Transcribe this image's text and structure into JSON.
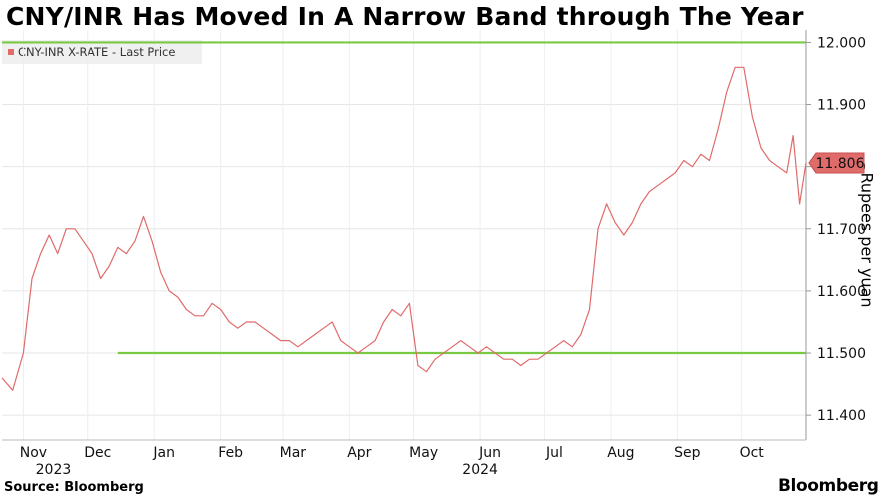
{
  "title": "CNY/INR Has Moved In A Narrow Band through The Year",
  "legend": {
    "label": "CNY-INR X-RATE - Last Price",
    "color": "#e06b6b"
  },
  "source": "Source: Bloomberg",
  "brand": "Bloomberg",
  "chart_data": {
    "type": "line",
    "title": "CNY/INR Has Moved In A Narrow Band through The Year",
    "ylabel": "Rupees per yuan",
    "xlabel": "",
    "ylim": [
      11.36,
      12.02
    ],
    "yticks": [
      "11.400",
      "11.500",
      "11.600",
      "11.700",
      "11.800",
      "11.900",
      "12.000"
    ],
    "ytick_values": [
      11.4,
      11.5,
      11.6,
      11.7,
      11.8,
      11.9,
      12.0
    ],
    "x_tick_labels": [
      "Nov",
      "Dec",
      "Jan",
      "Feb",
      "Mar",
      "Apr",
      "May",
      "Jun",
      "Jul",
      "Aug",
      "Sep",
      "Oct"
    ],
    "x_tick_dates": [
      "2023-11-01",
      "2023-12-01",
      "2024-01-01",
      "2024-02-01",
      "2024-03-01",
      "2024-04-01",
      "2024-05-01",
      "2024-06-01",
      "2024-07-01",
      "2024-08-01",
      "2024-09-01",
      "2024-10-01"
    ],
    "year_labels": [
      {
        "label": "2023",
        "date": "2023-11-15"
      },
      {
        "label": "2024",
        "date": "2024-06-01"
      }
    ],
    "x_range": [
      "2023-10-22",
      "2024-10-31"
    ],
    "last_price": {
      "label": "11.806",
      "value": 11.806
    },
    "reference_lines": [
      {
        "value": 12.0,
        "from": "2023-10-22",
        "to": "2024-10-31",
        "color": "#7ac943"
      },
      {
        "value": 11.5,
        "from": "2023-12-15",
        "to": "2024-10-31",
        "color": "#7ac943"
      }
    ],
    "series": [
      {
        "name": "CNY-INR X-RATE - Last Price",
        "color": "#e06b6b",
        "points": [
          [
            "2023-10-22",
            11.46
          ],
          [
            "2023-10-27",
            11.44
          ],
          [
            "2023-11-01",
            11.5
          ],
          [
            "2023-11-05",
            11.62
          ],
          [
            "2023-11-09",
            11.66
          ],
          [
            "2023-11-13",
            11.69
          ],
          [
            "2023-11-17",
            11.66
          ],
          [
            "2023-11-21",
            11.7
          ],
          [
            "2023-11-25",
            11.7
          ],
          [
            "2023-11-29",
            11.68
          ],
          [
            "2023-12-03",
            11.66
          ],
          [
            "2023-12-07",
            11.62
          ],
          [
            "2023-12-11",
            11.64
          ],
          [
            "2023-12-15",
            11.67
          ],
          [
            "2023-12-19",
            11.66
          ],
          [
            "2023-12-23",
            11.68
          ],
          [
            "2023-12-27",
            11.72
          ],
          [
            "2023-12-31",
            11.68
          ],
          [
            "2024-01-04",
            11.63
          ],
          [
            "2024-01-08",
            11.6
          ],
          [
            "2024-01-12",
            11.59
          ],
          [
            "2024-01-16",
            11.57
          ],
          [
            "2024-01-20",
            11.56
          ],
          [
            "2024-01-24",
            11.56
          ],
          [
            "2024-01-28",
            11.58
          ],
          [
            "2024-02-01",
            11.57
          ],
          [
            "2024-02-05",
            11.55
          ],
          [
            "2024-02-09",
            11.54
          ],
          [
            "2024-02-13",
            11.55
          ],
          [
            "2024-02-17",
            11.55
          ],
          [
            "2024-02-21",
            11.54
          ],
          [
            "2024-02-25",
            11.53
          ],
          [
            "2024-02-29",
            11.52
          ],
          [
            "2024-03-04",
            11.52
          ],
          [
            "2024-03-08",
            11.51
          ],
          [
            "2024-03-12",
            11.52
          ],
          [
            "2024-03-16",
            11.53
          ],
          [
            "2024-03-20",
            11.54
          ],
          [
            "2024-03-24",
            11.55
          ],
          [
            "2024-03-28",
            11.52
          ],
          [
            "2024-04-01",
            11.51
          ],
          [
            "2024-04-05",
            11.5
          ],
          [
            "2024-04-09",
            11.51
          ],
          [
            "2024-04-13",
            11.52
          ],
          [
            "2024-04-17",
            11.55
          ],
          [
            "2024-04-21",
            11.57
          ],
          [
            "2024-04-25",
            11.56
          ],
          [
            "2024-04-29",
            11.58
          ],
          [
            "2024-05-03",
            11.48
          ],
          [
            "2024-05-07",
            11.47
          ],
          [
            "2024-05-11",
            11.49
          ],
          [
            "2024-05-15",
            11.5
          ],
          [
            "2024-05-19",
            11.51
          ],
          [
            "2024-05-23",
            11.52
          ],
          [
            "2024-05-27",
            11.51
          ],
          [
            "2024-05-31",
            11.5
          ],
          [
            "2024-06-04",
            11.51
          ],
          [
            "2024-06-08",
            11.5
          ],
          [
            "2024-06-12",
            11.49
          ],
          [
            "2024-06-16",
            11.49
          ],
          [
            "2024-06-20",
            11.48
          ],
          [
            "2024-06-24",
            11.49
          ],
          [
            "2024-06-28",
            11.49
          ],
          [
            "2024-07-02",
            11.5
          ],
          [
            "2024-07-06",
            11.51
          ],
          [
            "2024-07-10",
            11.52
          ],
          [
            "2024-07-14",
            11.51
          ],
          [
            "2024-07-18",
            11.53
          ],
          [
            "2024-07-22",
            11.57
          ],
          [
            "2024-07-26",
            11.7
          ],
          [
            "2024-07-30",
            11.74
          ],
          [
            "2024-08-03",
            11.71
          ],
          [
            "2024-08-07",
            11.69
          ],
          [
            "2024-08-11",
            11.71
          ],
          [
            "2024-08-15",
            11.74
          ],
          [
            "2024-08-19",
            11.76
          ],
          [
            "2024-08-23",
            11.77
          ],
          [
            "2024-08-27",
            11.78
          ],
          [
            "2024-08-31",
            11.79
          ],
          [
            "2024-09-04",
            11.81
          ],
          [
            "2024-09-08",
            11.8
          ],
          [
            "2024-09-12",
            11.82
          ],
          [
            "2024-09-16",
            11.81
          ],
          [
            "2024-09-20",
            11.86
          ],
          [
            "2024-09-24",
            11.92
          ],
          [
            "2024-09-28",
            11.96
          ],
          [
            "2024-10-02",
            11.96
          ],
          [
            "2024-10-06",
            11.88
          ],
          [
            "2024-10-10",
            11.83
          ],
          [
            "2024-10-14",
            11.81
          ],
          [
            "2024-10-18",
            11.8
          ],
          [
            "2024-10-22",
            11.79
          ],
          [
            "2024-10-25",
            11.85
          ],
          [
            "2024-10-28",
            11.74
          ],
          [
            "2024-10-31",
            11.806
          ]
        ]
      }
    ]
  }
}
